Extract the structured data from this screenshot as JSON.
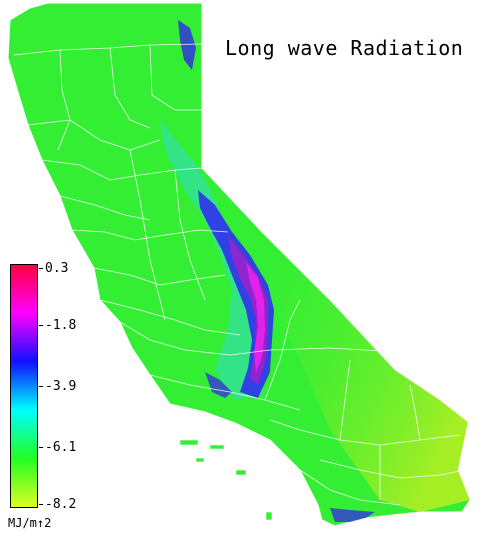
{
  "title": "Long wave Radiation",
  "legend": {
    "labels": [
      "0.3",
      "-1.8",
      "-3.9",
      "-6.1",
      "-8.2"
    ],
    "units": "MJ/m↑2",
    "colors": [
      "#ff0040",
      "#ff00ff",
      "#1010ff",
      "#00ffff",
      "#22ff22",
      "#ddff22"
    ]
  },
  "map": {
    "base_color": "#33ee33",
    "border_color": "#ffffff"
  }
}
